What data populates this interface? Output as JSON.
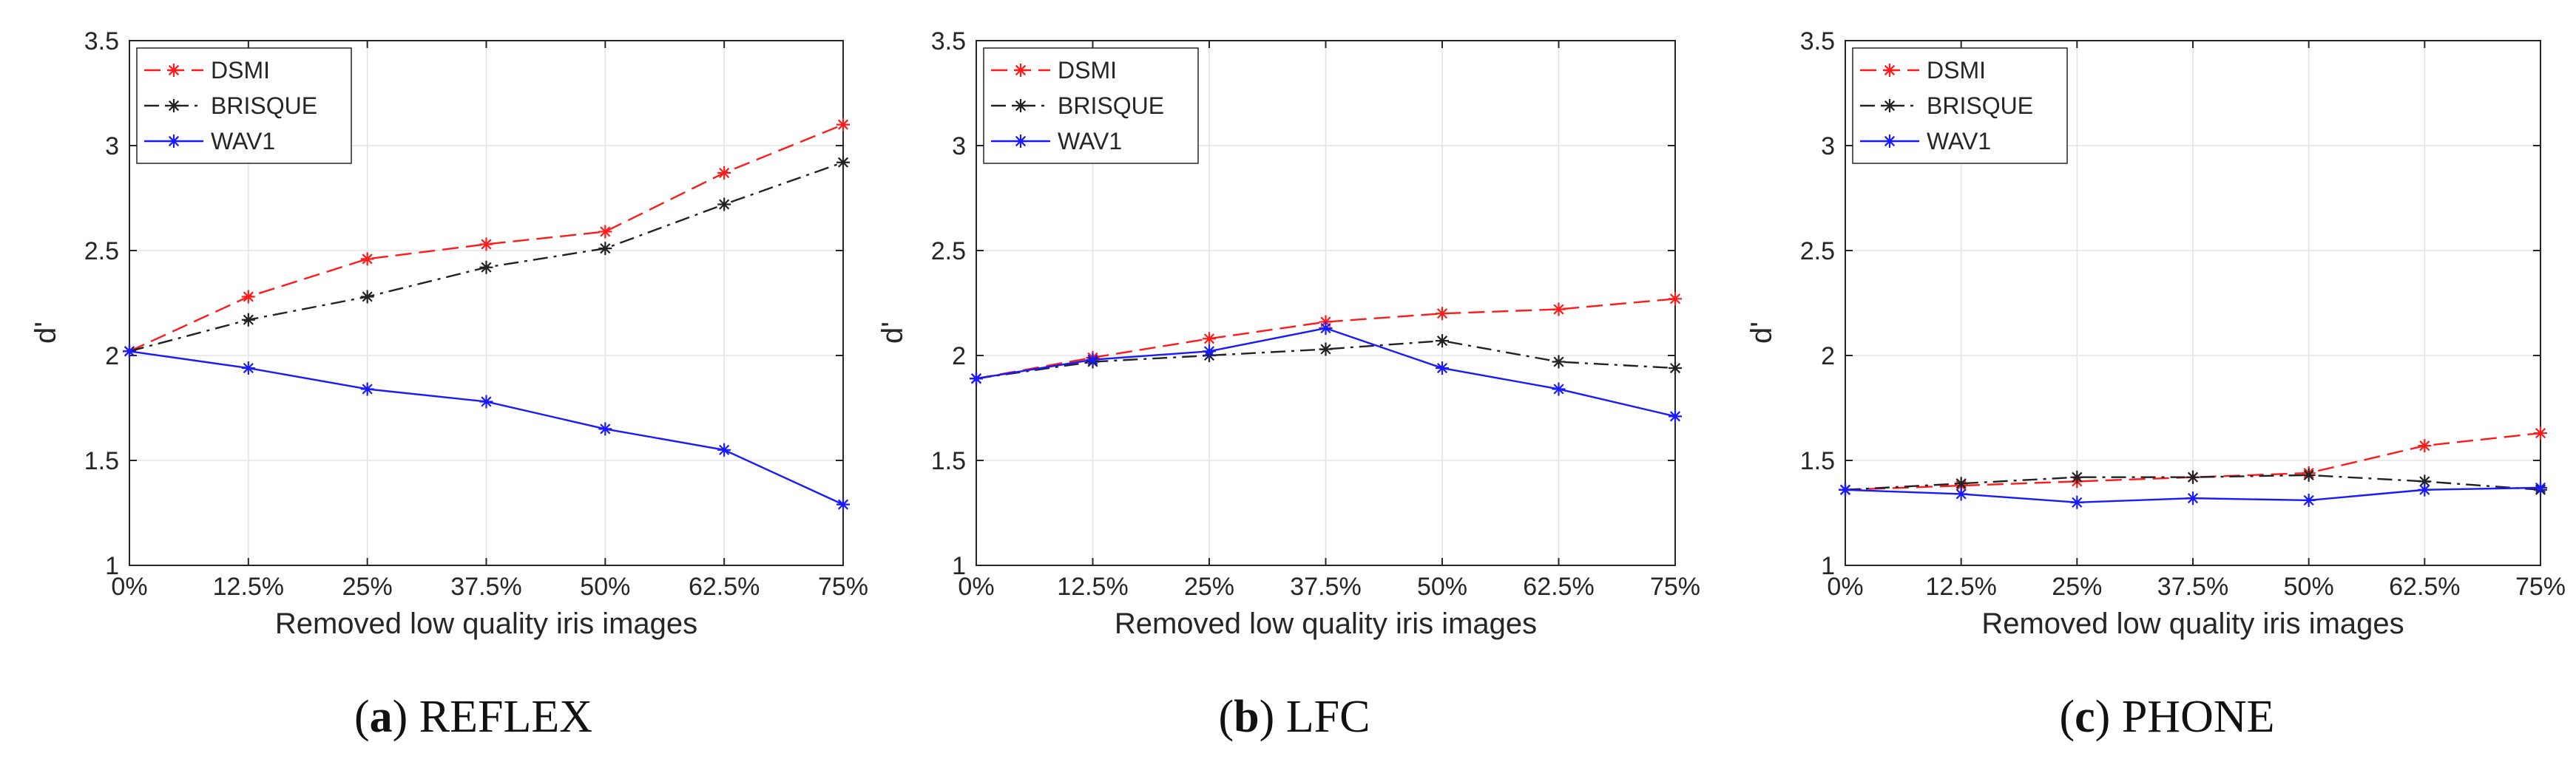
{
  "chart_data": [
    {
      "type": "line",
      "panel": "a",
      "caption": "REFLEX",
      "categories": [
        "0%",
        "12.5%",
        "25%",
        "37.5%",
        "50%",
        "62.5%",
        "75%"
      ],
      "xlabel": "Removed low quality iris images",
      "ylabel": "d'",
      "ylim": [
        1,
        3.5
      ],
      "yticks": [
        "1",
        "1.5",
        "2",
        "2.5",
        "3",
        "3.5"
      ],
      "grid": true,
      "legend": "top-left",
      "series": [
        {
          "name": "DSMI",
          "color": "#ff1a1a",
          "dash": "dashed",
          "values": [
            2.02,
            2.28,
            2.46,
            2.53,
            2.59,
            2.87,
            3.1
          ]
        },
        {
          "name": "BRISQUE",
          "color": "#222222",
          "dash": "dashdot",
          "values": [
            2.02,
            2.17,
            2.28,
            2.42,
            2.51,
            2.72,
            2.92
          ]
        },
        {
          "name": "WAV1",
          "color": "#1a1aff",
          "dash": "solid",
          "values": [
            2.02,
            1.94,
            1.84,
            1.78,
            1.65,
            1.55,
            1.29
          ]
        }
      ]
    },
    {
      "type": "line",
      "panel": "b",
      "caption": "LFC",
      "categories": [
        "0%",
        "12.5%",
        "25%",
        "37.5%",
        "50%",
        "62.5%",
        "75%"
      ],
      "xlabel": "Removed low quality iris images",
      "ylabel": "d'",
      "ylim": [
        1,
        3.5
      ],
      "yticks": [
        "1",
        "1.5",
        "2",
        "2.5",
        "3",
        "3.5"
      ],
      "grid": true,
      "legend": "top-left",
      "series": [
        {
          "name": "DSMI",
          "color": "#ff1a1a",
          "dash": "dashed",
          "values": [
            1.89,
            1.99,
            2.08,
            2.16,
            2.2,
            2.22,
            2.27
          ]
        },
        {
          "name": "BRISQUE",
          "color": "#222222",
          "dash": "dashdot",
          "values": [
            1.89,
            1.97,
            2.0,
            2.03,
            2.07,
            1.97,
            1.94
          ]
        },
        {
          "name": "WAV1",
          "color": "#1a1aff",
          "dash": "solid",
          "values": [
            1.89,
            1.98,
            2.02,
            2.13,
            1.94,
            1.84,
            1.71
          ]
        }
      ]
    },
    {
      "type": "line",
      "panel": "c",
      "caption": "PHONE",
      "categories": [
        "0%",
        "12.5%",
        "25%",
        "37.5%",
        "50%",
        "62.5%",
        "75%"
      ],
      "xlabel": "Removed low quality iris images",
      "ylabel": "d'",
      "ylim": [
        1,
        3.5
      ],
      "yticks": [
        "1",
        "1.5",
        "2",
        "2.5",
        "3",
        "3.5"
      ],
      "grid": true,
      "legend": "top-left",
      "series": [
        {
          "name": "DSMI",
          "color": "#ff1a1a",
          "dash": "dashed",
          "values": [
            1.36,
            1.38,
            1.4,
            1.42,
            1.44,
            1.57,
            1.63
          ]
        },
        {
          "name": "BRISQUE",
          "color": "#222222",
          "dash": "dashdot",
          "values": [
            1.36,
            1.39,
            1.42,
            1.42,
            1.43,
            1.4,
            1.36
          ]
        },
        {
          "name": "WAV1",
          "color": "#1a1aff",
          "dash": "solid",
          "values": [
            1.36,
            1.34,
            1.3,
            1.32,
            1.31,
            1.36,
            1.37
          ]
        }
      ]
    }
  ]
}
